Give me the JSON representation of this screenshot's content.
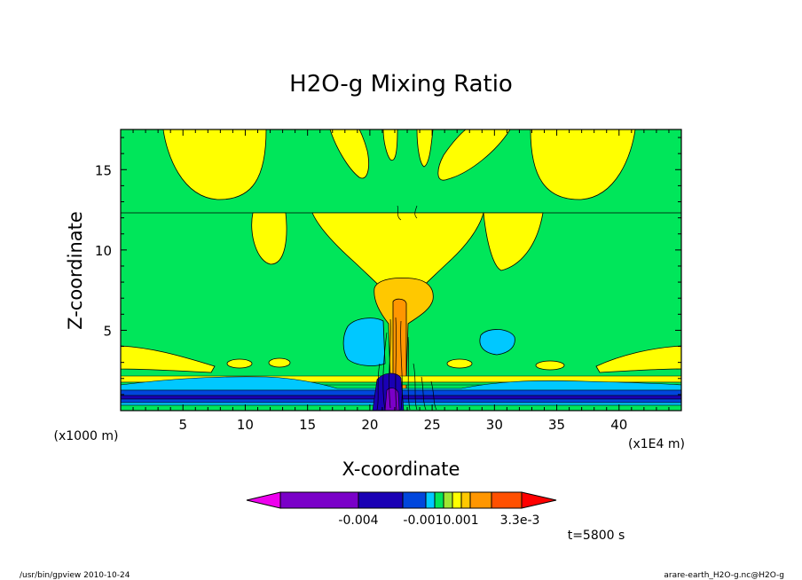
{
  "chart_data": {
    "type": "contour",
    "title": "H2O-g Mixing Ratio",
    "xlabel": "X-coordinate",
    "ylabel": "Z-coordinate",
    "x_unit_label": "(x1E4 m)",
    "y_unit_label": "(x1000 m)",
    "xlim": [
      0,
      45
    ],
    "ylim": [
      0,
      17.5
    ],
    "x_ticks": [
      5,
      10,
      15,
      20,
      25,
      30,
      35,
      40
    ],
    "y_ticks": [
      5,
      10,
      15
    ],
    "colorbar": {
      "colors": [
        "#ee00ee",
        "#7a00c8",
        "#1a00b4",
        "#0046dc",
        "#00c8ff",
        "#00e65a",
        "#a0e632",
        "#ffff00",
        "#ffc800",
        "#ff9600",
        "#ff5000",
        "#ff0000"
      ],
      "tick_labels": [
        "-0.004",
        "-0.0010.001",
        "3.3e-3"
      ]
    },
    "time_label": "t=5800 s"
  },
  "footer": {
    "left": "/usr/bin/gpview  2010-10-24",
    "right": "arare-earth_H2O-g.nc@H2O-g"
  }
}
